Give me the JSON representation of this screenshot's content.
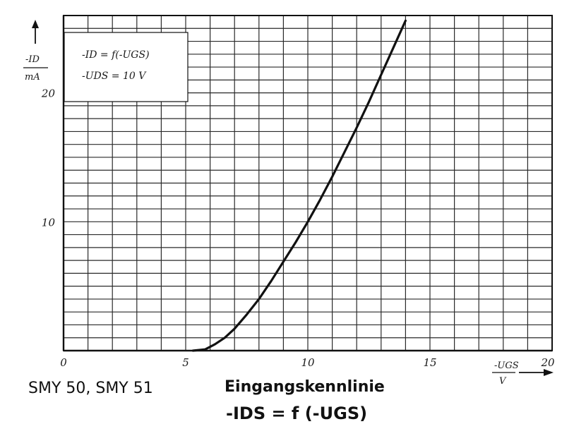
{
  "caption": {
    "device": "SMY 50, SMY 51",
    "title": "Eingangskennlinie",
    "formula": "-IDS = f (-UGS)"
  },
  "chart_data": {
    "type": "line",
    "title": "",
    "legend": [
      "-ID = f(-UGS)",
      "-UDS = 10 V"
    ],
    "legend_position": "top-left",
    "ylabel_top": "-ID",
    "ylabel_bottom": "mA",
    "xlabel_top": "-UGS",
    "xlabel_bottom": "V",
    "xlim": [
      0,
      20
    ],
    "ylim": [
      0,
      26
    ],
    "xticks": [
      0,
      5,
      10,
      15,
      20
    ],
    "yticks": [
      10,
      20
    ],
    "xtick_labels": [
      "0",
      "5",
      "10",
      "15",
      "20"
    ],
    "ytick_labels": [
      "10",
      "20"
    ],
    "grid": true,
    "series": [
      {
        "x": [
          5.3,
          5.8,
          6.2,
          6.6,
          7.0,
          7.5,
          8.0,
          8.5,
          9.0,
          9.5,
          10.0,
          10.5,
          11.0,
          11.5,
          12.0,
          12.5,
          13.0,
          13.5,
          14.0
        ],
        "y": [
          0.0,
          0.1,
          0.5,
          1.0,
          1.7,
          2.8,
          4.0,
          5.4,
          6.9,
          8.4,
          10.0,
          11.7,
          13.5,
          15.4,
          17.3,
          19.3,
          21.4,
          23.5,
          25.6
        ]
      }
    ]
  }
}
